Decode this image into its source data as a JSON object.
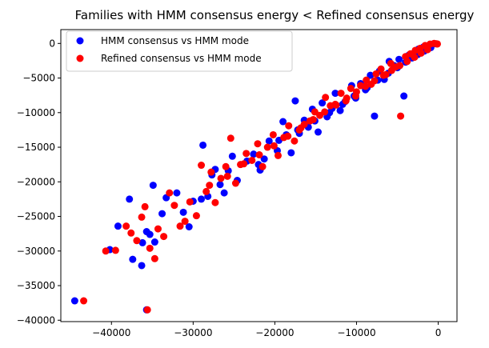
{
  "chart_data": {
    "type": "scatter",
    "title": "Families with HMM consensus energy < Refined consensus energy",
    "xlabel": "",
    "ylabel": "",
    "xlim": [
      -46200,
      2300
    ],
    "ylim": [
      -40200,
      2000
    ],
    "x_ticks": [
      -40000,
      -30000,
      -20000,
      -10000,
      0
    ],
    "y_ticks": [
      0,
      -5000,
      -10000,
      -15000,
      -20000,
      -25000,
      -30000,
      -35000,
      -40000
    ],
    "x_tick_labels": [
      "−40000",
      "−30000",
      "−20000",
      "−10000",
      "0"
    ],
    "y_tick_labels": [
      "0",
      "−5000",
      "−10000",
      "−15000",
      "−20000",
      "−25000",
      "−30000",
      "−35000",
      "−40000"
    ],
    "grid": false,
    "legend_position": "upper-left",
    "series": [
      {
        "name": "HMM consensus vs HMM mode",
        "color": "#0000ff",
        "points": [
          [
            -44500,
            -37200
          ],
          [
            -40200,
            -29800
          ],
          [
            -39200,
            -26400
          ],
          [
            -37800,
            -22500
          ],
          [
            -37400,
            -31200
          ],
          [
            -36300,
            -32100
          ],
          [
            -36200,
            -28800
          ],
          [
            -35700,
            -38500
          ],
          [
            -35700,
            -27200
          ],
          [
            -35300,
            -27600
          ],
          [
            -34900,
            -20500
          ],
          [
            -34700,
            -28700
          ],
          [
            -33800,
            -24600
          ],
          [
            -33300,
            -22300
          ],
          [
            -32000,
            -21600
          ],
          [
            -31200,
            -24400
          ],
          [
            -30500,
            -26500
          ],
          [
            -30000,
            -22800
          ],
          [
            -29000,
            -22500
          ],
          [
            -28800,
            -14700
          ],
          [
            -28200,
            -22100
          ],
          [
            -27700,
            -19000
          ],
          [
            -27300,
            -18200
          ],
          [
            -26700,
            -20400
          ],
          [
            -26200,
            -21600
          ],
          [
            -25700,
            -18400
          ],
          [
            -25200,
            -16300
          ],
          [
            -24600,
            -19800
          ],
          [
            -23400,
            -17000
          ],
          [
            -22600,
            -16000
          ],
          [
            -21800,
            -18300
          ],
          [
            -21300,
            -16700
          ],
          [
            -20700,
            -14100
          ],
          [
            -19700,
            -15500
          ],
          [
            -19000,
            -11300
          ],
          [
            -18600,
            -13200
          ],
          [
            -18000,
            -15800
          ],
          [
            -17500,
            -8300
          ],
          [
            -17000,
            -13000
          ],
          [
            -16400,
            -11100
          ],
          [
            -15900,
            -12100
          ],
          [
            -15400,
            -9500
          ],
          [
            -14700,
            -12800
          ],
          [
            -14200,
            -8600
          ],
          [
            -13600,
            -10600
          ],
          [
            -13000,
            -9400
          ],
          [
            -12600,
            -7200
          ],
          [
            -12000,
            -9700
          ],
          [
            -11400,
            -8400
          ],
          [
            -10600,
            -6100
          ],
          [
            -10100,
            -7900
          ],
          [
            -9500,
            -5800
          ],
          [
            -8900,
            -6700
          ],
          [
            -8300,
            -4600
          ],
          [
            -7800,
            -10500
          ],
          [
            -7200,
            -4000
          ],
          [
            -6600,
            -5200
          ],
          [
            -6000,
            -2600
          ],
          [
            -5400,
            -3200
          ],
          [
            -4800,
            -2300
          ],
          [
            -4200,
            -7600
          ],
          [
            -3600,
            -1700
          ],
          [
            -3000,
            -1400
          ],
          [
            -2400,
            -800
          ],
          [
            -1800,
            -500
          ],
          [
            -1200,
            -300
          ],
          [
            -700,
            -100
          ],
          [
            -300,
            -50
          ],
          [
            -22000,
            -17500
          ],
          [
            -19500,
            -14000
          ],
          [
            -17200,
            -12500
          ],
          [
            -15100,
            -11200
          ],
          [
            -13300,
            -10000
          ],
          [
            -11700,
            -8800
          ],
          [
            -10300,
            -7600
          ],
          [
            -8700,
            -6400
          ],
          [
            -7400,
            -5300
          ],
          [
            -6100,
            -4300
          ],
          [
            -5000,
            -3500
          ],
          [
            -4000,
            -2700
          ],
          [
            -3200,
            -2100
          ],
          [
            -2500,
            -1600
          ],
          [
            -1700,
            -1100
          ],
          [
            -900,
            -600
          ]
        ]
      },
      {
        "name": "Refined consensus vs HMM mode",
        "color": "#ff0000",
        "points": [
          [
            -43400,
            -37200
          ],
          [
            -40700,
            -30000
          ],
          [
            -39500,
            -29900
          ],
          [
            -38200,
            -26400
          ],
          [
            -37600,
            -27400
          ],
          [
            -36900,
            -28500
          ],
          [
            -36300,
            -25100
          ],
          [
            -35900,
            -23600
          ],
          [
            -35600,
            -38500
          ],
          [
            -35300,
            -29600
          ],
          [
            -34700,
            -31100
          ],
          [
            -34300,
            -26800
          ],
          [
            -33600,
            -27900
          ],
          [
            -32900,
            -21600
          ],
          [
            -32300,
            -23400
          ],
          [
            -31600,
            -26400
          ],
          [
            -31000,
            -25700
          ],
          [
            -30400,
            -22900
          ],
          [
            -29600,
            -24900
          ],
          [
            -29000,
            -17600
          ],
          [
            -28400,
            -21400
          ],
          [
            -27800,
            -18600
          ],
          [
            -27300,
            -23000
          ],
          [
            -26600,
            -19500
          ],
          [
            -26000,
            -17800
          ],
          [
            -25400,
            -13700
          ],
          [
            -24800,
            -20200
          ],
          [
            -24200,
            -17500
          ],
          [
            -23500,
            -15900
          ],
          [
            -22800,
            -16900
          ],
          [
            -22100,
            -14500
          ],
          [
            -21500,
            -17800
          ],
          [
            -20900,
            -15000
          ],
          [
            -20200,
            -13200
          ],
          [
            -19600,
            -16200
          ],
          [
            -18900,
            -13600
          ],
          [
            -18300,
            -11900
          ],
          [
            -17600,
            -14100
          ],
          [
            -17000,
            -12500
          ],
          [
            -16400,
            -11700
          ],
          [
            -15700,
            -11200
          ],
          [
            -15100,
            -9900
          ],
          [
            -14500,
            -10400
          ],
          [
            -13800,
            -7800
          ],
          [
            -13200,
            -9000
          ],
          [
            -12600,
            -8800
          ],
          [
            -11900,
            -7200
          ],
          [
            -11300,
            -8300
          ],
          [
            -10700,
            -6500
          ],
          [
            -10100,
            -7600
          ],
          [
            -9500,
            -6100
          ],
          [
            -8800,
            -5300
          ],
          [
            -8200,
            -5900
          ],
          [
            -7600,
            -4400
          ],
          [
            -7000,
            -3700
          ],
          [
            -6400,
            -4500
          ],
          [
            -5800,
            -2900
          ],
          [
            -5200,
            -3400
          ],
          [
            -4600,
            -10500
          ],
          [
            -4000,
            -1900
          ],
          [
            -3400,
            -1500
          ],
          [
            -2800,
            -1000
          ],
          [
            -2200,
            -700
          ],
          [
            -1600,
            -300
          ],
          [
            -1000,
            -100
          ],
          [
            -500,
            0
          ],
          [
            -200,
            -50
          ],
          [
            -100,
            -80
          ],
          [
            -28000,
            -20500
          ],
          [
            -25800,
            -19200
          ],
          [
            -23800,
            -17400
          ],
          [
            -21900,
            -16100
          ],
          [
            -20100,
            -14800
          ],
          [
            -18400,
            -13400
          ],
          [
            -16800,
            -12200
          ],
          [
            -15300,
            -11000
          ],
          [
            -13900,
            -9900
          ],
          [
            -12500,
            -8900
          ],
          [
            -11200,
            -7900
          ],
          [
            -10000,
            -7000
          ],
          [
            -8900,
            -6200
          ],
          [
            -7800,
            -5400
          ],
          [
            -6700,
            -4600
          ],
          [
            -5700,
            -3900
          ],
          [
            -4700,
            -3200
          ],
          [
            -3800,
            -2600
          ],
          [
            -2900,
            -2000
          ],
          [
            -2100,
            -1400
          ],
          [
            -1300,
            -900
          ]
        ]
      }
    ]
  }
}
